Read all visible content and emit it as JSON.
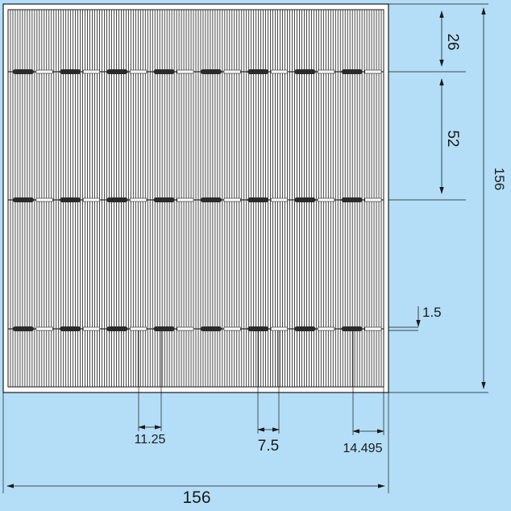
{
  "colors": {
    "background": "#b4def7",
    "cell_fill": "#ffffff",
    "line": "#1a1a1a",
    "busbar": "#2a2a2a"
  },
  "drawing": {
    "grid_line_count": 156,
    "busbar_count": 3,
    "busbar_segments": 8
  },
  "dimensions": {
    "top_margin": "26",
    "busbar_pitch": "52",
    "cell_height": "156",
    "busbar_width": "1.5",
    "segment_gap": "11.25",
    "tab_width": "7.5",
    "edge_offset": "14.495",
    "cell_width": "156"
  }
}
